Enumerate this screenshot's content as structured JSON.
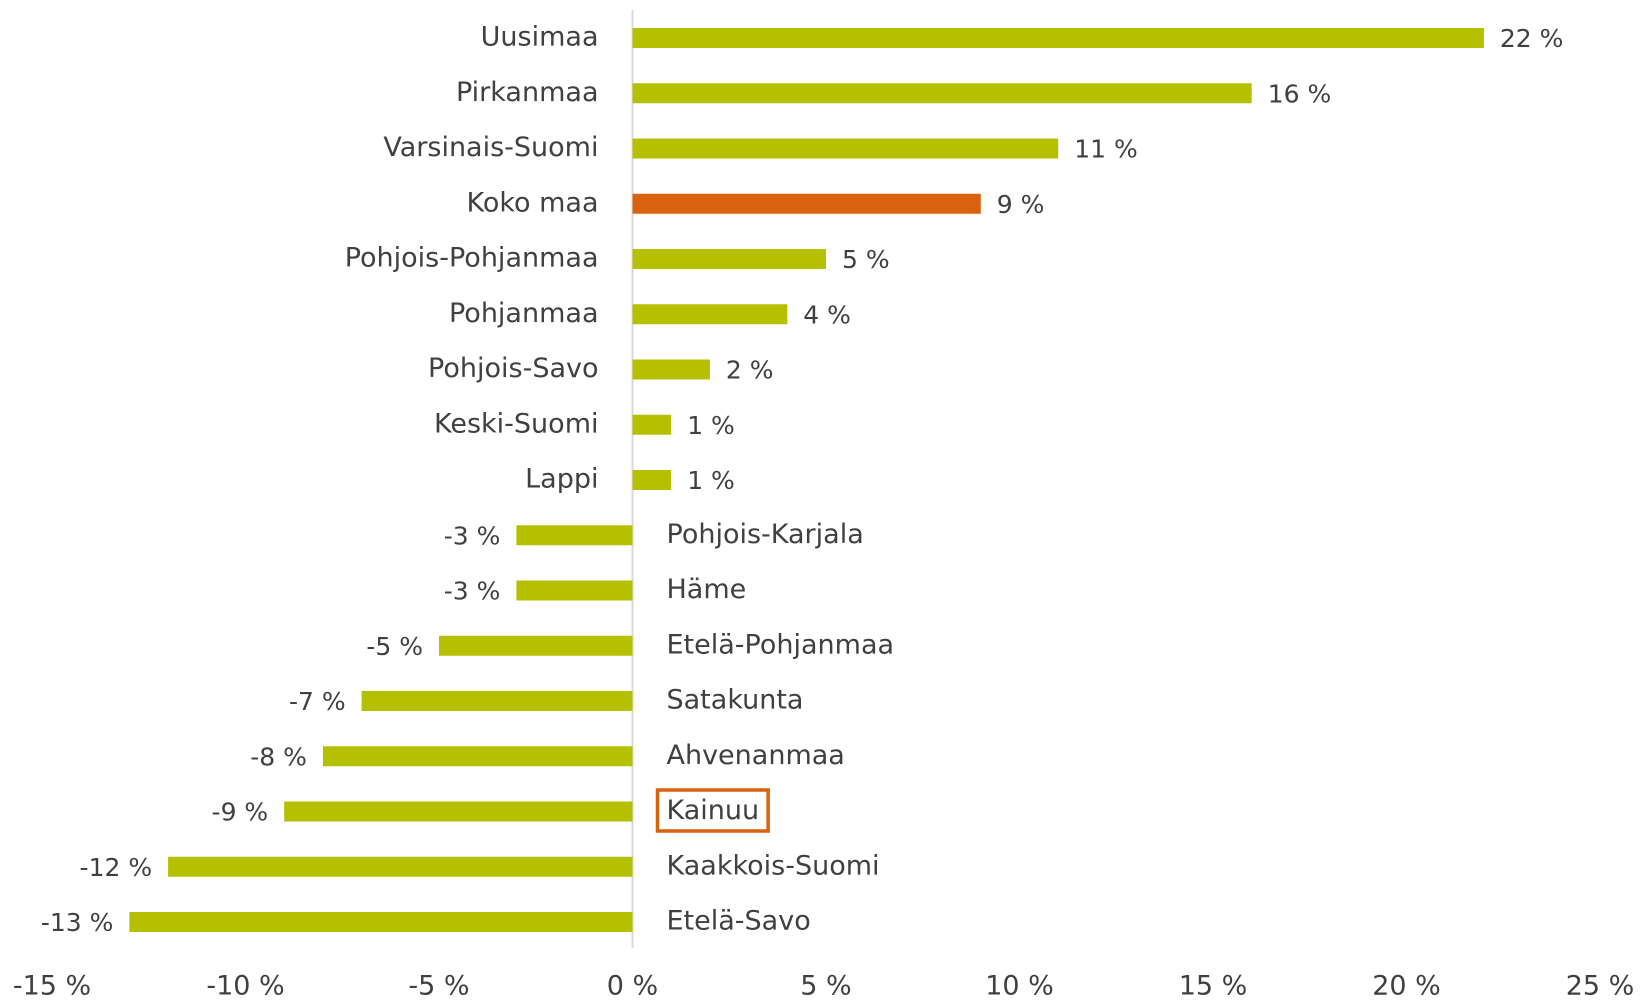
{
  "chart_data": {
    "type": "hbar",
    "categories": [
      "Uusimaa",
      "Pirkanmaa",
      "Varsinais-Suomi",
      "Koko maa",
      "Pohjois-Pohjanmaa",
      "Pohjanmaa",
      "Pohjois-Savo",
      "Keski-Suomi",
      "Lappi",
      "Pohjois-Karjala",
      "Häme",
      "Etelä-Pohjanmaa",
      "Satakunta",
      "Ahvenanmaa",
      "Kainuu",
      "Kaakkois-Suomi",
      "Etelä-Savo"
    ],
    "values": [
      22,
      16,
      11,
      9,
      5,
      4,
      2,
      1,
      1,
      -3,
      -3,
      -5,
      -7,
      -8,
      -9,
      -12,
      -13
    ],
    "value_labels": [
      "22 %",
      "16 %",
      "11 %",
      "9 %",
      "5 %",
      "4 %",
      "2 %",
      "1 %",
      "1 %",
      "-3 %",
      "-3 %",
      "-5 %",
      "-7 %",
      "-8 %",
      "-9 %",
      "-12 %",
      "-13 %"
    ],
    "colors": [
      "#b5c000",
      "#b5c000",
      "#b5c000",
      "#d9620f",
      "#b5c000",
      "#b5c000",
      "#b5c000",
      "#b5c000",
      "#b5c000",
      "#b5c000",
      "#b5c000",
      "#b5c000",
      "#b5c000",
      "#b5c000",
      "#b5c000",
      "#b5c000",
      "#b5c000"
    ],
    "label_box": {
      "category_index": 14,
      "color": "#d9620f"
    },
    "xlim": [
      -15,
      25
    ],
    "xticks": [
      {
        "value": -15,
        "label": "-15 %"
      },
      {
        "value": -10,
        "label": "-10 %"
      },
      {
        "value": -5,
        "label": "-5 %"
      },
      {
        "value": 0,
        "label": "0 %"
      },
      {
        "value": 5,
        "label": "5 %"
      },
      {
        "value": 10,
        "label": "10 %"
      },
      {
        "value": 15,
        "label": "15 %"
      },
      {
        "value": 20,
        "label": "20 %"
      },
      {
        "value": 25,
        "label": "25 %"
      }
    ],
    "grid": false
  }
}
